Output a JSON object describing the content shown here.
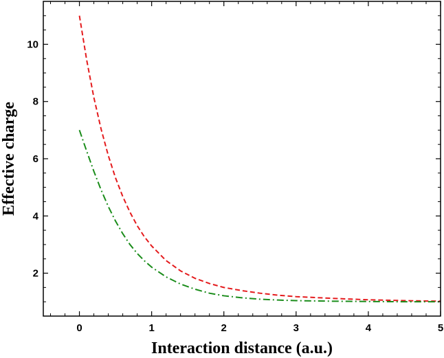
{
  "chart_data": {
    "type": "line",
    "title": "",
    "xlabel": "Interaction distance (a.u.)",
    "ylabel": "Effective charge",
    "xlim": [
      -0.5,
      5.0
    ],
    "ylim": [
      0.5,
      11.5
    ],
    "x_ticks": [
      0,
      1,
      2,
      3,
      4,
      5
    ],
    "x_tick_labels": [
      "0",
      "1",
      "2",
      "3",
      "4",
      "5"
    ],
    "x_minor_step": 0.2,
    "y_ticks": [
      2,
      4,
      6,
      8,
      10
    ],
    "y_tick_labels": [
      "2",
      "4",
      "6",
      "8",
      "10"
    ],
    "y_minor_step": 0.5,
    "grid": false,
    "legend": "none",
    "x": [
      0,
      0.1,
      0.2,
      0.3,
      0.4,
      0.5,
      0.6,
      0.7,
      0.8,
      0.9,
      1.0,
      1.2,
      1.4,
      1.6,
      1.8,
      2.0,
      2.25,
      2.5,
      2.75,
      3.0,
      3.5,
      4.0,
      4.5,
      5.0
    ],
    "series": [
      {
        "color": "#e41a1c",
        "dash": "dashed",
        "values": [
          11.0,
          9.46,
          8.14,
          7.04,
          6.11,
          5.33,
          4.68,
          4.13,
          3.66,
          3.27,
          2.95,
          2.44,
          2.08,
          1.82,
          1.64,
          1.5,
          1.39,
          1.3,
          1.23,
          1.18,
          1.12,
          1.07,
          1.04,
          1.02
        ]
      },
      {
        "color": "#1a8c1a",
        "dash": "dashdot",
        "values": [
          7.0,
          6.27,
          5.56,
          4.91,
          4.33,
          3.82,
          3.38,
          3.0,
          2.69,
          2.43,
          2.21,
          1.87,
          1.62,
          1.44,
          1.3,
          1.21,
          1.14,
          1.09,
          1.06,
          1.04,
          1.02,
          1.01,
          1.0,
          1.0
        ]
      }
    ]
  }
}
